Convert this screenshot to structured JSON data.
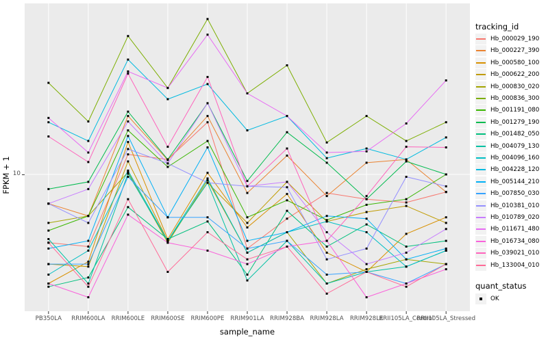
{
  "chart": {
    "y_axis": {
      "title": "FPKM + 1",
      "tick_label": "10",
      "tick_value": 10
    },
    "x_axis": {
      "title": "sample_name"
    },
    "legend": {
      "tracking_title": "tracking_id",
      "quant_title": "quant_status",
      "quant_items": [
        {
          "label": "OK",
          "marker": "black-square-icon"
        }
      ]
    },
    "colors": {
      "panel_bg": "#EBEBEB",
      "grid": "#FFFFFF",
      "point": "#000000",
      "tick_text": "#4D4D4D"
    }
  },
  "chart_data": {
    "type": "line",
    "title": "",
    "xlabel": "sample_name",
    "ylabel": "FPKM + 1",
    "y_scale": "log10",
    "y_breaks": [
      10
    ],
    "y_range_approx": [
      1.8,
      90
    ],
    "grid": "vertical-majors-plus-y10",
    "legend_position": "right",
    "point_marker": "black-square",
    "x_categories": [
      "PB350LA",
      "RRIM600LA",
      "RRIM600LE",
      "RRIM600SE",
      "RRIM600PE",
      "RRIM901LA",
      "RRIM928BA",
      "RRIM928LA",
      "RRIM928LE",
      "RRII105LA_Control",
      "RRII105LA_Stressed"
    ],
    "series": [
      {
        "name": "Hb_000029_190",
        "color": "#F8766D",
        "values": [
          4.2,
          4.0,
          12.9,
          12.1,
          19.4,
          3.9,
          5.7,
          7.9,
          7.3,
          7.0,
          8.0
        ]
      },
      {
        "name": "Hb_000227_390",
        "color": "#EA8331",
        "values": [
          6.9,
          5.9,
          21.0,
          12.0,
          21.0,
          7.9,
          12.7,
          7.6,
          11.6,
          12.1,
          8.0
        ]
      },
      {
        "name": "Hb_000580_100",
        "color": "#D89000",
        "values": [
          2.5,
          3.3,
          15.1,
          4.4,
          10.2,
          5.1,
          7.8,
          3.7,
          2.9,
          4.7,
          5.8
        ]
      },
      {
        "name": "Hb_000622_200",
        "color": "#C09B00",
        "values": [
          3.2,
          3.1,
          11.8,
          4.3,
          9.0,
          5.4,
          9.1,
          5.5,
          6.2,
          6.7,
          5.4
        ]
      },
      {
        "name": "Hb_000830_020",
        "color": "#A3A500",
        "values": [
          5.4,
          5.9,
          10.3,
          4.2,
          9.3,
          3.7,
          4.8,
          2.5,
          3.0,
          3.4,
          3.2
        ]
      },
      {
        "name": "Hb_000836_300",
        "color": "#7CAE00",
        "values": [
          32,
          19.6,
          58,
          30,
          72,
          28,
          40,
          15,
          21,
          15.3,
          19.4
        ]
      },
      {
        "name": "Hb_001191_080",
        "color": "#39B600",
        "values": [
          4.9,
          5.9,
          17.5,
          11.0,
          15.3,
          5.8,
          7.2,
          5.6,
          6.8,
          7.3,
          10.0
        ]
      },
      {
        "name": "Hb_001279_190",
        "color": "#00BB4E",
        "values": [
          8.3,
          9.1,
          22.2,
          12.1,
          24.7,
          9.2,
          17.1,
          11.6,
          7.3,
          11.8,
          10.0
        ]
      },
      {
        "name": "Hb_001482_050",
        "color": "#00BF7D",
        "values": [
          2.4,
          2.7,
          6.6,
          4.4,
          5.5,
          2.8,
          6.3,
          4.0,
          5.3,
          4.0,
          4.3
        ]
      },
      {
        "name": "Hb_004079_130",
        "color": "#00C1A3",
        "values": [
          4.4,
          2.5,
          10.1,
          4.3,
          9.0,
          2.6,
          4.3,
          2.5,
          2.9,
          3.1,
          3.8
        ]
      },
      {
        "name": "Hb_004096_160",
        "color": "#00BFC4",
        "values": [
          2.8,
          3.8,
          10.5,
          4.3,
          9.5,
          3.7,
          4.8,
          5.5,
          4.8,
          3.1,
          3.8
        ]
      },
      {
        "name": "Hb_004228_120",
        "color": "#00BAE0",
        "values": [
          19.4,
          15.3,
          43,
          26,
          31.5,
          17.5,
          21,
          12.3,
          13.9,
          12.1,
          16.0
        ]
      },
      {
        "name": "Hb_005144_210",
        "color": "#00B0F6",
        "values": [
          3.9,
          4.3,
          16.3,
          5.8,
          14.1,
          4.3,
          4.8,
          5.9,
          5.7,
          3.4,
          3.9
        ]
      },
      {
        "name": "Hb_007850_030",
        "color": "#35A2FF",
        "values": [
          3.2,
          3.2,
          9.7,
          5.8,
          5.8,
          3.9,
          4.3,
          2.8,
          2.9,
          2.5,
          3.2
        ]
      },
      {
        "name": "Hb_010381_010",
        "color": "#9590FF",
        "values": [
          6.9,
          5.4,
          13.8,
          11.5,
          9.0,
          8.6,
          8.5,
          3.4,
          3.9,
          9.7,
          8.6
        ]
      },
      {
        "name": "Hb_010789_020",
        "color": "#C77CFF",
        "values": [
          6.9,
          8.3,
          19.6,
          11.5,
          24.7,
          8.6,
          9.1,
          4.8,
          3.2,
          3.7,
          5.0
        ]
      },
      {
        "name": "Hb_011671_480",
        "color": "#E76BF3",
        "values": [
          20.5,
          13.2,
          37,
          30,
          59,
          28,
          21,
          13.2,
          13.4,
          19.1,
          33
        ]
      },
      {
        "name": "Hb_016734_080",
        "color": "#FA62DB",
        "values": [
          2.5,
          2.1,
          6.0,
          4.2,
          3.8,
          3.2,
          4.0,
          4.3,
          2.1,
          2.5,
          3.0
        ]
      },
      {
        "name": "Hb_039021_010",
        "color": "#FF62BC",
        "values": [
          16.2,
          11.7,
          36,
          14.2,
          34.5,
          8.6,
          13.9,
          4.3,
          7.6,
          14.2,
          14.1
        ]
      },
      {
        "name": "Hb_133004_010",
        "color": "#FF6A98",
        "values": [
          4.2,
          2.4,
          7.3,
          2.9,
          4.8,
          3.4,
          4.0,
          2.2,
          2.9,
          2.4,
          3.2
        ]
      }
    ]
  }
}
